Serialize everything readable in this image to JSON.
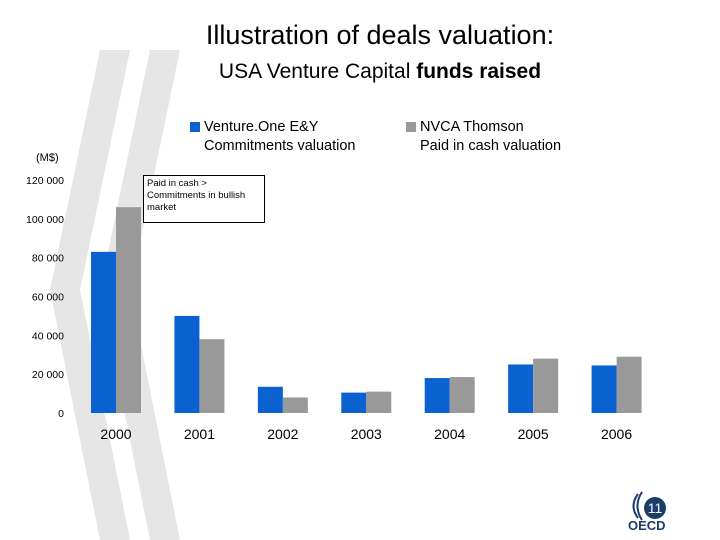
{
  "title": "Illustration of deals valuation:",
  "subtitle_prefix": "USA Venture Capital ",
  "subtitle_bold": "funds raised",
  "unit_label": "(M$)",
  "annotation": [
    "Paid in cash >",
    "Commitments in bullish",
    "market"
  ],
  "page_number": "11",
  "logo_text": "OECD",
  "colors": {
    "series_venture": "#0a62d0",
    "series_nvca": "#999999",
    "logo_blue": "#1a3d6b",
    "watermark": "#e6e6e6"
  },
  "chart_data": {
    "type": "bar",
    "categories": [
      "2000",
      "2001",
      "2002",
      "2003",
      "2004",
      "2005",
      "2006"
    ],
    "series": [
      {
        "name": "Venture.One E&Y Commitments valuation",
        "legend_lines": [
          "Venture.One E&Y",
          "Commitments valuation"
        ],
        "values": [
          83000,
          50000,
          13500,
          10500,
          18000,
          25000,
          24500
        ]
      },
      {
        "name": "NVCA Thomson Paid in cash valuation",
        "legend_lines": [
          "NVCA Thomson",
          "Paid in cash valuation"
        ],
        "values": [
          106000,
          38000,
          8000,
          11000,
          18500,
          28000,
          29000
        ]
      }
    ],
    "y_ticks": [
      "0",
      "20 000",
      "40 000",
      "60 000",
      "80 000",
      "100 000",
      "120 000"
    ],
    "y_tick_values": [
      0,
      20000,
      40000,
      60000,
      80000,
      100000,
      120000
    ],
    "ylim": [
      0,
      120000
    ],
    "grid": false,
    "legend_position": "top"
  }
}
